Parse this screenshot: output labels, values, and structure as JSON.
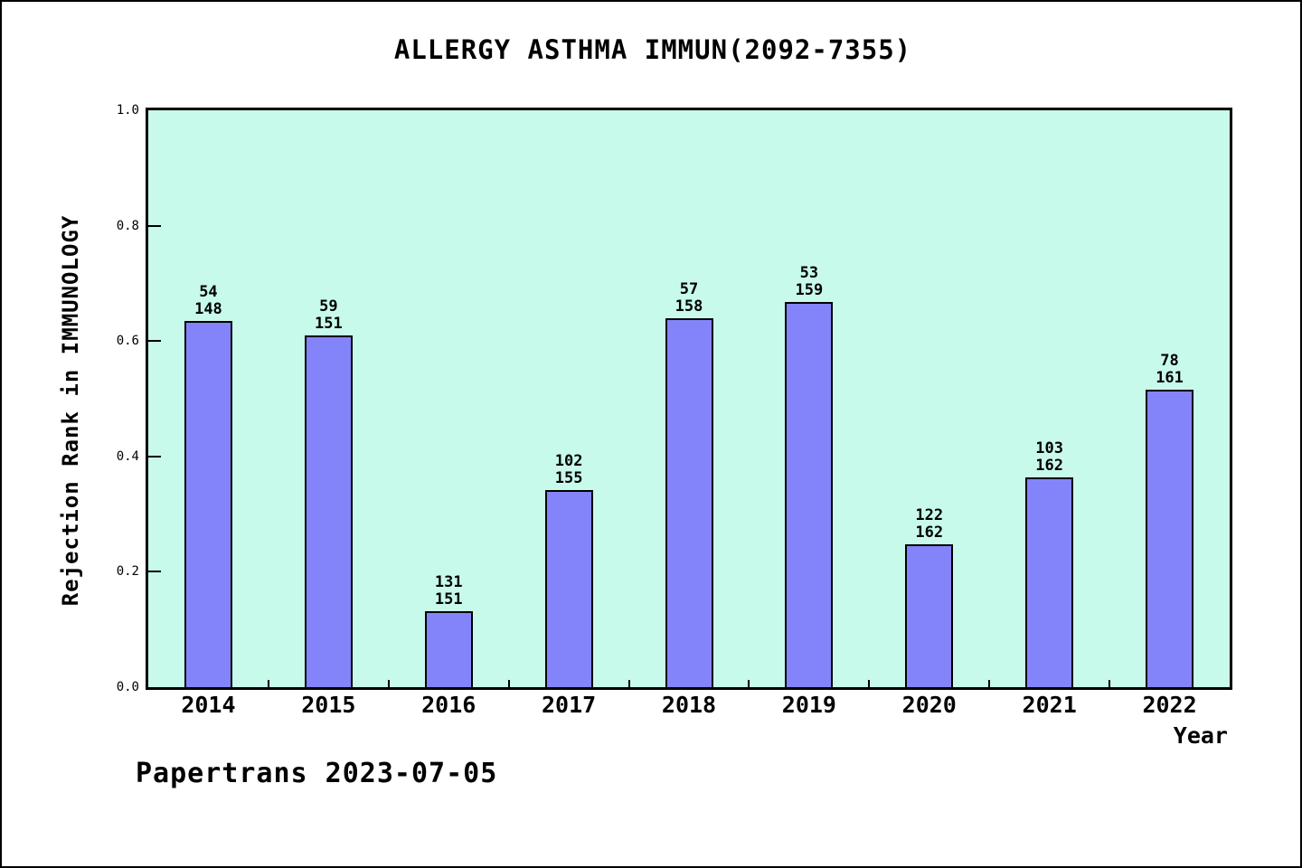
{
  "colors": {
    "bar_fill": "#8484fa",
    "bar_border": "#000000",
    "plot_background": "#c8faec",
    "frame": "#000000",
    "page_background": "#ffffff"
  },
  "watermark": "Papertrans 2023-07-05",
  "chart_data": {
    "type": "bar",
    "title": "ALLERGY ASTHMA IMMUN(2092-7355)",
    "xlabel": "Year",
    "ylabel": "Rejection Rank in IMMUNOLOGY",
    "categories": [
      "2014",
      "2015",
      "2016",
      "2017",
      "2018",
      "2019",
      "2020",
      "2021",
      "2022"
    ],
    "values": [
      0.635,
      0.609,
      0.132,
      0.342,
      0.639,
      0.667,
      0.247,
      0.364,
      0.516
    ],
    "bar_labels": [
      [
        "54",
        "148"
      ],
      [
        "59",
        "151"
      ],
      [
        "131",
        "151"
      ],
      [
        "102",
        "155"
      ],
      [
        "57",
        "158"
      ],
      [
        "53",
        "159"
      ],
      [
        "122",
        "162"
      ],
      [
        "103",
        "162"
      ],
      [
        "78",
        "161"
      ]
    ],
    "ylim": [
      0.0,
      1.0
    ],
    "yticks": [
      "0.0",
      "0.2",
      "0.4",
      "0.6",
      "0.8",
      "1.0"
    ],
    "ytick_values": [
      0.0,
      0.2,
      0.4,
      0.6,
      0.8,
      1.0
    ],
    "grid": false,
    "legend": null
  }
}
